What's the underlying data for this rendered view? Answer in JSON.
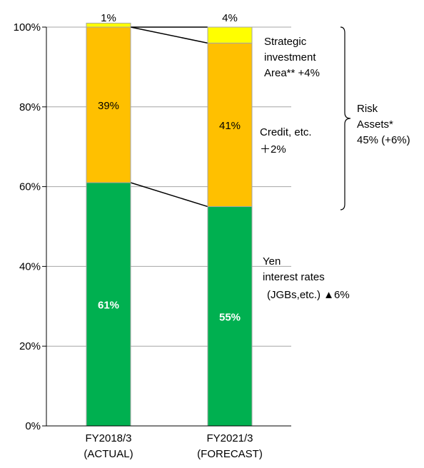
{
  "chart_data": {
    "type": "bar",
    "stacked": true,
    "categories": [
      [
        "FY2018/3",
        "(ACTUAL)"
      ],
      [
        "FY2021/3",
        "(FORECAST)"
      ]
    ],
    "series": [
      {
        "key": "yen",
        "values": [
          61,
          55
        ],
        "labels": [
          "61%",
          "55%"
        ],
        "color": "#00b050",
        "label_color": "#ffffff",
        "label_bold": true
      },
      {
        "key": "credit",
        "values": [
          39,
          41
        ],
        "labels": [
          "39%",
          "41%"
        ],
        "color": "#ffc000",
        "label_color": "#000000",
        "label_bold": false
      },
      {
        "key": "strategic",
        "values": [
          1,
          4
        ],
        "labels": [
          "1%",
          "4%"
        ],
        "color": "#ffff00",
        "label_color": "#000000",
        "label_bold": false
      }
    ],
    "yticks": [
      "0%",
      "20%",
      "40%",
      "60%",
      "80%",
      "100%"
    ],
    "ylim": [
      0,
      100
    ],
    "grid": true,
    "annotations": {
      "strategic": [
        "Strategic",
        "investment",
        "Area** +4%"
      ],
      "credit": [
        "Credit, etc.",
        "＋2%"
      ],
      "yen": [
        "Yen",
        "interest rates",
        "(JGBs,etc.)  ▲6%"
      ],
      "risk": [
        "Risk",
        "Assets*",
        "45% (+6%)"
      ]
    }
  }
}
